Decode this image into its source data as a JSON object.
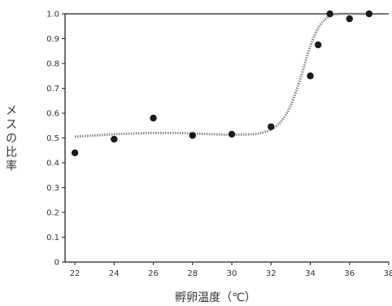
{
  "chart_data": {
    "type": "scatter",
    "title": "",
    "xlabel": "孵卵温度（℃）",
    "ylabel": "メスの比率",
    "xlim": [
      21.5,
      38
    ],
    "ylim": [
      0,
      1.0
    ],
    "x_ticks": [
      "22",
      "24",
      "26",
      "28",
      "30",
      "32",
      "34",
      "36",
      "38"
    ],
    "y_ticks": [
      "0",
      "0.1",
      "0.2",
      "0.3",
      "0.4",
      "0.5",
      "0.6",
      "0.7",
      "0.8",
      "0.9",
      "1.0"
    ],
    "grid": false,
    "legend": "none",
    "series": [
      {
        "kind": "points",
        "x": [
          22,
          24,
          26,
          28,
          30,
          32,
          34,
          34.4,
          35,
          36,
          37
        ],
        "y": [
          0.44,
          0.495,
          0.58,
          0.51,
          0.515,
          0.545,
          0.75,
          0.875,
          1.0,
          0.98,
          1.0
        ]
      },
      {
        "kind": "fitted-curve",
        "style": "dotted",
        "x": [
          22,
          23,
          24,
          25,
          26,
          27,
          28,
          29,
          30,
          31,
          31.5,
          32,
          32.5,
          33,
          33.5,
          34,
          34.5,
          35,
          35.5,
          36,
          36.5,
          37
        ],
        "y": [
          0.505,
          0.51,
          0.515,
          0.518,
          0.52,
          0.52,
          0.518,
          0.515,
          0.513,
          0.515,
          0.52,
          0.535,
          0.565,
          0.63,
          0.74,
          0.87,
          0.955,
          0.99,
          1.0,
          1.0,
          1.0,
          1.0
        ]
      }
    ],
    "colors": {
      "points": "#1a1a1a",
      "curve": "#888888",
      "axis": "#222222",
      "text": "#333333"
    }
  }
}
